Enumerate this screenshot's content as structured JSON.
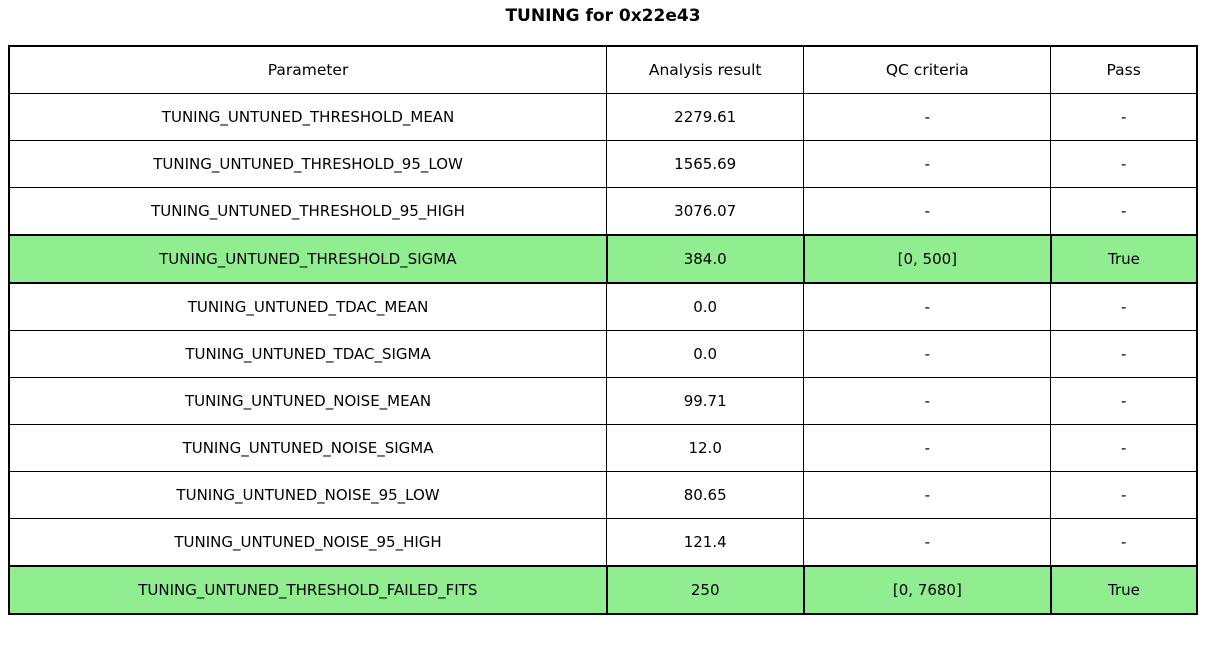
{
  "title": "TUNING for 0x22e43",
  "colors": {
    "highlight": "#90EE90",
    "border": "#000000",
    "background": "#ffffff"
  },
  "chart_data": {
    "type": "table",
    "title": "TUNING for 0x22e43",
    "columns": [
      "Parameter",
      "Analysis result",
      "QC criteria",
      "Pass"
    ],
    "rows": [
      {
        "parameter": "TUNING_UNTUNED_THRESHOLD_MEAN",
        "analysis_result": "2279.61",
        "qc_criteria": "-",
        "pass": "-",
        "highlighted": false
      },
      {
        "parameter": "TUNING_UNTUNED_THRESHOLD_95_LOW",
        "analysis_result": "1565.69",
        "qc_criteria": "-",
        "pass": "-",
        "highlighted": false
      },
      {
        "parameter": "TUNING_UNTUNED_THRESHOLD_95_HIGH",
        "analysis_result": "3076.07",
        "qc_criteria": "-",
        "pass": "-",
        "highlighted": false
      },
      {
        "parameter": "TUNING_UNTUNED_THRESHOLD_SIGMA",
        "analysis_result": "384.0",
        "qc_criteria": "[0, 500]",
        "pass": "True",
        "highlighted": true
      },
      {
        "parameter": "TUNING_UNTUNED_TDAC_MEAN",
        "analysis_result": "0.0",
        "qc_criteria": "-",
        "pass": "-",
        "highlighted": false
      },
      {
        "parameter": "TUNING_UNTUNED_TDAC_SIGMA",
        "analysis_result": "0.0",
        "qc_criteria": "-",
        "pass": "-",
        "highlighted": false
      },
      {
        "parameter": "TUNING_UNTUNED_NOISE_MEAN",
        "analysis_result": "99.71",
        "qc_criteria": "-",
        "pass": "-",
        "highlighted": false
      },
      {
        "parameter": "TUNING_UNTUNED_NOISE_SIGMA",
        "analysis_result": "12.0",
        "qc_criteria": "-",
        "pass": "-",
        "highlighted": false
      },
      {
        "parameter": "TUNING_UNTUNED_NOISE_95_LOW",
        "analysis_result": "80.65",
        "qc_criteria": "-",
        "pass": "-",
        "highlighted": false
      },
      {
        "parameter": "TUNING_UNTUNED_NOISE_95_HIGH",
        "analysis_result": "121.4",
        "qc_criteria": "-",
        "pass": "-",
        "highlighted": false
      },
      {
        "parameter": "TUNING_UNTUNED_THRESHOLD_FAILED_FITS",
        "analysis_result": "250",
        "qc_criteria": "[0, 7680]",
        "pass": "True",
        "highlighted": true
      }
    ]
  }
}
